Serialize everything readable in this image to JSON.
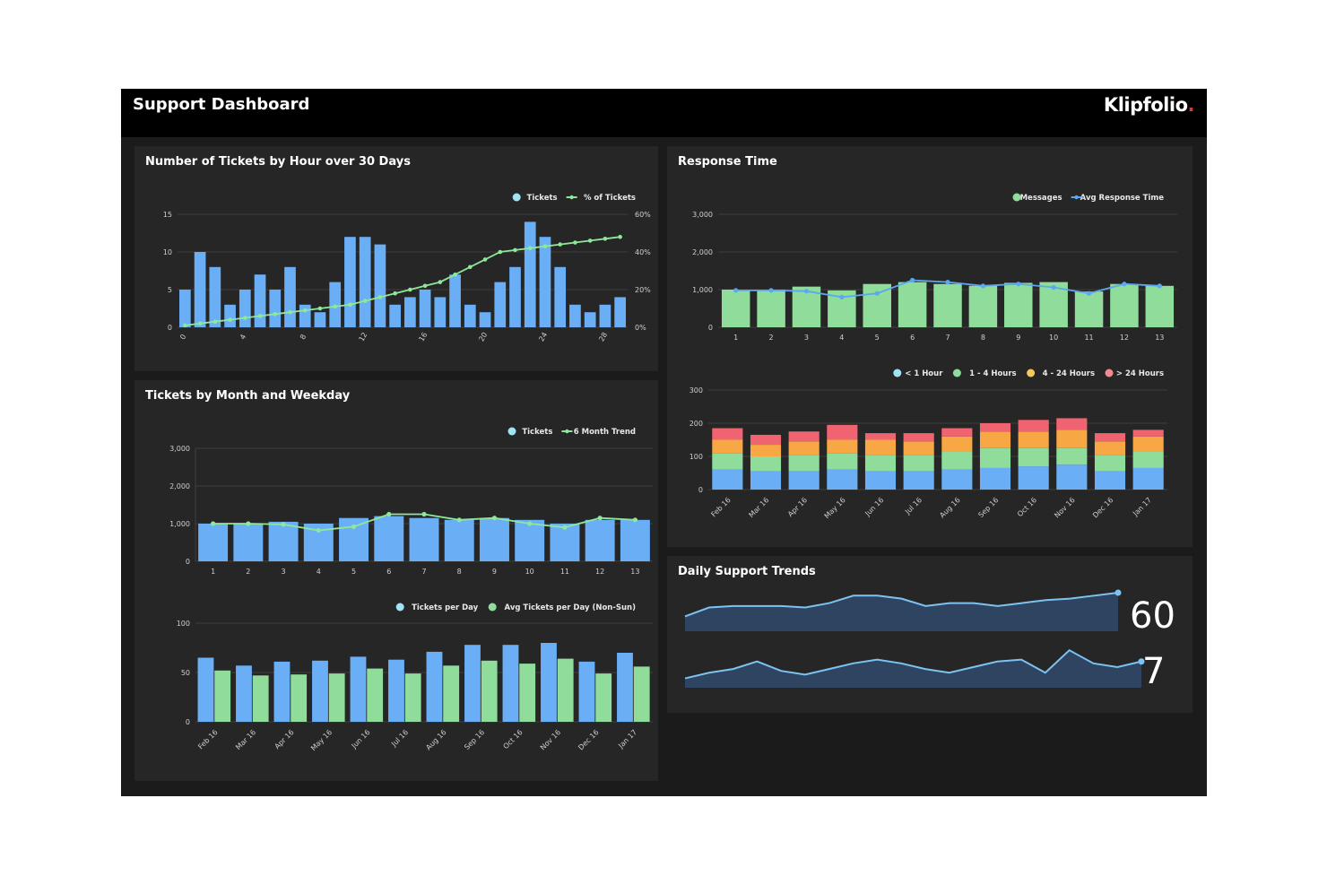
{
  "header": {
    "title": "Support Dashboard",
    "brand": "Klipfolio",
    "brand_mark": "."
  },
  "panels": {
    "tickets_hour": {
      "title": "Number of Tickets by Hour over 30 Days"
    },
    "response": {
      "title": "Response Time"
    },
    "month_weekday": {
      "title": "Tickets by Month and Weekday"
    },
    "daily": {
      "title": "Daily Support Trends"
    }
  },
  "colors": {
    "blue": "#6aaef5",
    "green": "#8fdc9b",
    "line_green": "#8ee89a",
    "line_blue": "#5aa8f0",
    "red": "#ef6470",
    "orange": "#f7a744",
    "yellow": "#f6c85a",
    "cyan": "#9fe3f5",
    "grid": "#3d3d3d",
    "label": "#cfcfcf"
  },
  "chart_data": [
    {
      "id": "tickets_by_hour",
      "type": "bar",
      "x": [
        0,
        1,
        2,
        3,
        4,
        5,
        6,
        7,
        8,
        9,
        10,
        11,
        12,
        13,
        14,
        15,
        16,
        17,
        18,
        19,
        20,
        21,
        22,
        23,
        24,
        25,
        26,
        27,
        28,
        29
      ],
      "x_tick_labels": [
        "0",
        "4",
        "8",
        "12",
        "16",
        "20",
        "24",
        "28"
      ],
      "x_tick_values": [
        0,
        4,
        8,
        12,
        16,
        20,
        24,
        28
      ],
      "series": [
        {
          "name": "Tickets",
          "values": [
            5,
            10,
            8,
            3,
            5,
            7,
            5,
            8,
            3,
            2,
            6,
            12,
            12,
            11,
            3,
            4,
            5,
            4,
            7,
            3,
            2,
            6,
            8,
            14,
            12,
            8,
            3,
            2,
            3,
            4
          ]
        },
        {
          "name": "% of Tickets",
          "type": "line",
          "axis": "right",
          "values": [
            1,
            2,
            3,
            4,
            5,
            6,
            7,
            8,
            9,
            10,
            11,
            12,
            14,
            16,
            18,
            20,
            22,
            24,
            28,
            32,
            36,
            40,
            41,
            42,
            43,
            44,
            45,
            46,
            47,
            48
          ]
        }
      ],
      "ylim": [
        0,
        15
      ],
      "y_ticks": [
        0,
        5,
        10,
        15
      ],
      "y2lim": [
        0,
        60
      ],
      "y2_tick_labels": [
        "0%",
        "20%",
        "40%",
        "60%"
      ],
      "grid": true,
      "legend": "top-right"
    },
    {
      "id": "response_time",
      "type": "bar",
      "categories": [
        "1",
        "2",
        "3",
        "4",
        "5",
        "6",
        "7",
        "8",
        "9",
        "10",
        "11",
        "12",
        "13"
      ],
      "series": [
        {
          "name": "Messages",
          "values": [
            1000,
            1000,
            1080,
            980,
            1150,
            1200,
            1150,
            1100,
            1180,
            1200,
            950,
            1150,
            1100
          ]
        },
        {
          "name": "Avg Response Time",
          "type": "line",
          "values": [
            980,
            980,
            960,
            800,
            900,
            1250,
            1200,
            1100,
            1150,
            1060,
            900,
            1150,
            1100
          ]
        }
      ],
      "ylim": [
        0,
        3000
      ],
      "y_tick_labels": [
        "0",
        "1,000",
        "2,000",
        "3,000"
      ],
      "grid": true,
      "legend": "top-right"
    },
    {
      "id": "response_hours_stacked",
      "type": "bar",
      "stacked": true,
      "categories": [
        "Feb 16",
        "Mar 16",
        "Apr 16",
        "May 16",
        "Jun 16",
        "Jul 16",
        "Aug 16",
        "Sep 16",
        "Oct 16",
        "Nov 16",
        "Dec 16",
        "Jan 17"
      ],
      "series": [
        {
          "name": "< 1 Hour",
          "values": [
            60,
            55,
            55,
            60,
            55,
            55,
            60,
            65,
            70,
            75,
            55,
            65
          ]
        },
        {
          "name": "1 - 4 Hours",
          "values": [
            50,
            45,
            50,
            50,
            50,
            50,
            55,
            60,
            55,
            50,
            50,
            50
          ]
        },
        {
          "name": "4 - 24 Hours",
          "values": [
            40,
            35,
            40,
            40,
            45,
            40,
            45,
            50,
            50,
            55,
            40,
            45
          ]
        },
        {
          "name": "> 24 Hours",
          "values": [
            35,
            30,
            30,
            45,
            20,
            25,
            25,
            25,
            35,
            35,
            25,
            20
          ]
        }
      ],
      "ylim": [
        0,
        300
      ],
      "y_ticks": [
        0,
        100,
        200,
        300
      ],
      "grid": true,
      "legend": "top-right"
    },
    {
      "id": "tickets_month_weekday",
      "type": "bar",
      "categories": [
        "1",
        "2",
        "3",
        "4",
        "5",
        "6",
        "7",
        "8",
        "9",
        "10",
        "11",
        "12",
        "13"
      ],
      "series": [
        {
          "name": "Tickets",
          "values": [
            1000,
            1000,
            1050,
            1000,
            1150,
            1200,
            1150,
            1100,
            1150,
            1100,
            1000,
            1100,
            1100
          ]
        },
        {
          "name": "6 Month Trend",
          "type": "line",
          "values": [
            1000,
            1000,
            980,
            820,
            920,
            1250,
            1250,
            1100,
            1150,
            1000,
            900,
            1150,
            1100
          ]
        }
      ],
      "ylim": [
        0,
        3000
      ],
      "y_tick_labels": [
        "0",
        "1,000",
        "2,000",
        "3,000"
      ],
      "grid": true,
      "legend": "top-right"
    },
    {
      "id": "tickets_per_day",
      "type": "bar",
      "categories": [
        "Feb 16",
        "Mar 16",
        "Apr 16",
        "May 16",
        "Jun 16",
        "Jul 16",
        "Aug 16",
        "Sep 16",
        "Oct 16",
        "Nov 16",
        "Dec 16",
        "Jan 17"
      ],
      "series": [
        {
          "name": "Tickets per Day",
          "values": [
            65,
            57,
            61,
            62,
            66,
            63,
            71,
            78,
            78,
            80,
            61,
            70
          ]
        },
        {
          "name": "Avg Tickets per Day (Non-Sun)",
          "values": [
            52,
            47,
            48,
            49,
            54,
            49,
            57,
            62,
            59,
            64,
            49,
            56
          ]
        }
      ],
      "ylim": [
        0,
        100
      ],
      "y_ticks": [
        0,
        50,
        100
      ],
      "grid": true,
      "legend": "top-right"
    },
    {
      "id": "daily_trend_1",
      "type": "area",
      "values": [
        10,
        16,
        17,
        17,
        17,
        16,
        19,
        24,
        24,
        22,
        17,
        19,
        19,
        17,
        19,
        21,
        22,
        24,
        26
      ],
      "kpi": "60"
    },
    {
      "id": "daily_trend_2",
      "type": "area",
      "values": [
        5,
        8,
        10,
        14,
        9,
        7,
        10,
        13,
        15,
        13,
        10,
        8,
        11,
        14,
        15,
        8,
        20,
        13,
        11,
        14
      ],
      "kpi": "7"
    }
  ]
}
